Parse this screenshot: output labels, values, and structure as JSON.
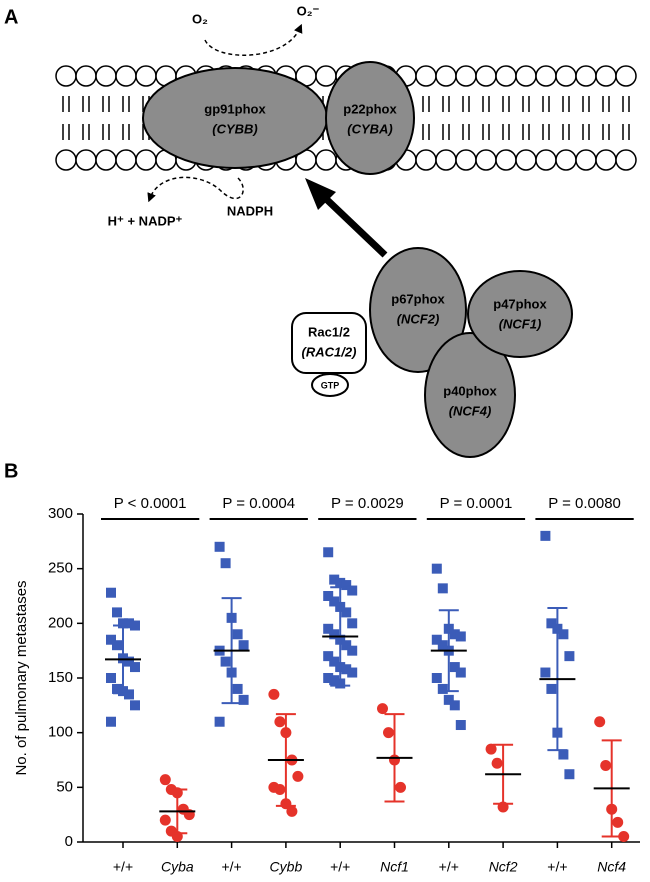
{
  "diagram": {
    "panel_label": "A",
    "o2": "O₂",
    "superoxide": "O₂⁻",
    "gp91": {
      "name": "gp91phox",
      "gene": "(CYBB)"
    },
    "p22": {
      "name": "p22phox",
      "gene": "(CYBA)"
    },
    "products": "H⁺ + NADP⁺",
    "nadph": "NADPH",
    "p67": {
      "name": "p67phox",
      "gene": "(NCF2)"
    },
    "p47": {
      "name": "p47phox",
      "gene": "(NCF1)"
    },
    "rac": {
      "name": "Rac1/2",
      "gene": "(RAC1/2)"
    },
    "gtp": "GTP",
    "p40": {
      "name": "p40phox",
      "gene": "(NCF4)"
    }
  },
  "chart_data": {
    "type": "strip",
    "panel_label": "B",
    "y_label": "No. of pulmonary metastases",
    "ylim": [
      0,
      300
    ],
    "yticks": [
      0,
      50,
      100,
      150,
      200,
      250,
      300
    ],
    "comparisons": [
      "P < 0.0001",
      "P = 0.0004",
      "P = 0.0029",
      "P = 0.0001",
      "P = 0.0080"
    ],
    "groups": [
      {
        "category": "+/+",
        "color": "#3b5cb8",
        "marker": "square",
        "values": [
          228,
          210,
          200,
          200,
          198,
          185,
          180,
          168,
          165,
          160,
          150,
          140,
          138,
          135,
          125,
          110
        ],
        "mean": 167,
        "sd": 31
      },
      {
        "category": "Cyba",
        "color": "#e5332a",
        "marker": "circle",
        "values": [
          57,
          48,
          45,
          30,
          25,
          20,
          10,
          5
        ],
        "mean": 28,
        "sd": 20
      },
      {
        "category": "+/+",
        "color": "#3b5cb8",
        "marker": "square",
        "values": [
          270,
          255,
          205,
          190,
          180,
          175,
          165,
          155,
          140,
          130,
          110
        ],
        "mean": 175,
        "sd": 48
      },
      {
        "category": "Cybb",
        "color": "#e5332a",
        "marker": "circle",
        "values": [
          135,
          110,
          100,
          75,
          60,
          50,
          48,
          35,
          28
        ],
        "mean": 75,
        "sd": 42
      },
      {
        "category": "+/+",
        "color": "#3b5cb8",
        "marker": "square",
        "values": [
          265,
          240,
          237,
          235,
          230,
          225,
          220,
          215,
          210,
          200,
          195,
          190,
          185,
          180,
          175,
          170,
          165,
          160,
          158,
          155,
          150,
          148,
          145
        ],
        "mean": 188,
        "sd": 45
      },
      {
        "category": "Ncf1",
        "color": "#e5332a",
        "marker": "circle",
        "values": [
          122,
          100,
          75,
          50
        ],
        "mean": 77,
        "sd": 40
      },
      {
        "category": "+/+",
        "color": "#3b5cb8",
        "marker": "square",
        "values": [
          250,
          232,
          195,
          190,
          188,
          185,
          180,
          175,
          160,
          155,
          150,
          140,
          130,
          125,
          107
        ],
        "mean": 175,
        "sd": 37
      },
      {
        "category": "Ncf2",
        "color": "#e5332a",
        "marker": "circle",
        "values": [
          85,
          72,
          32
        ],
        "mean": 62,
        "sd": 27
      },
      {
        "category": "+/+",
        "color": "#3b5cb8",
        "marker": "square",
        "values": [
          280,
          200,
          195,
          190,
          170,
          155,
          140,
          100,
          80,
          62
        ],
        "mean": 149,
        "sd": 65
      },
      {
        "category": "Ncf4",
        "color": "#e5332a",
        "marker": "circle",
        "values": [
          110,
          70,
          30,
          18,
          5
        ],
        "mean": 49,
        "sd": 44
      }
    ]
  }
}
